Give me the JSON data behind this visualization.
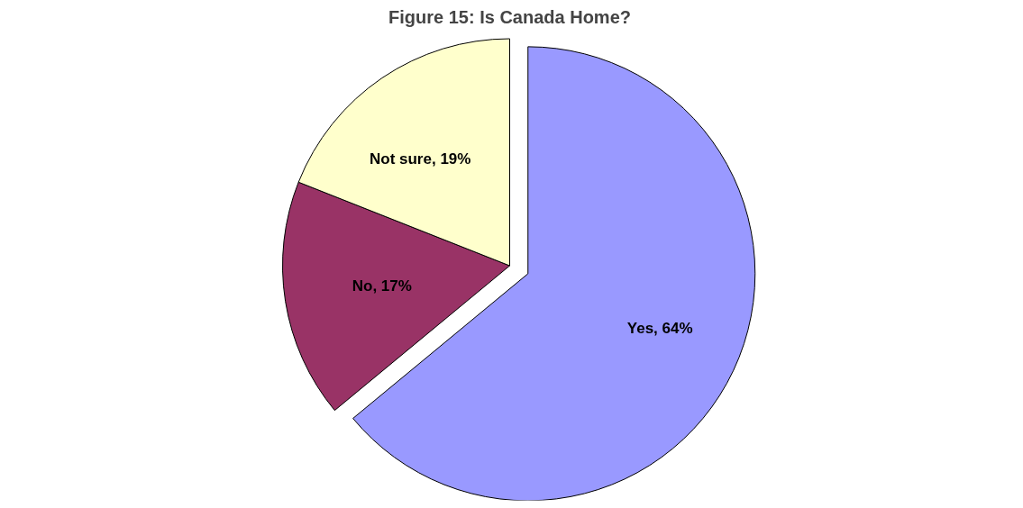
{
  "chart_data": {
    "type": "pie",
    "title": "Figure 15: Is Canada Home?",
    "categories": [
      "Yes",
      "No",
      "Not sure"
    ],
    "values": [
      64,
      17,
      19
    ],
    "colors": [
      "#9999ff",
      "#993366",
      "#ffffcc"
    ],
    "value_labels": [
      ", 64%",
      ", 17%",
      ", 19%"
    ],
    "legend": false
  }
}
